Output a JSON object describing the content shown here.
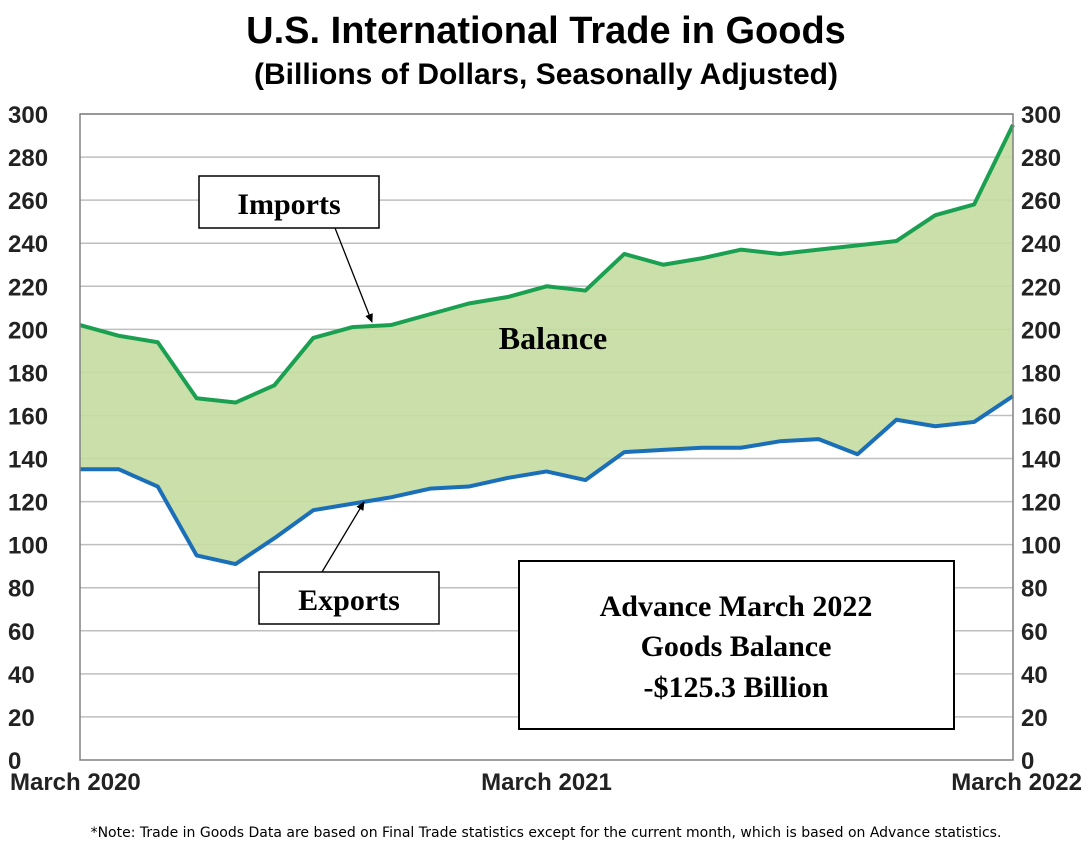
{
  "title": "U.S. International Trade in Goods",
  "subtitle": "(Billions of Dollars, Seasonally Adjusted)",
  "note": "*Note: Trade in Goods Data are based on Final Trade statistics except for the current month, which is based on Advance statistics.",
  "colors": {
    "imports": "#1aa050",
    "exports": "#1a6fb8",
    "balance_fill": "#c4dba0",
    "grid": "#bfbfbf"
  },
  "chart_data": {
    "type": "area",
    "ylim": [
      0,
      300
    ],
    "yticks": [
      0,
      20,
      40,
      60,
      80,
      100,
      120,
      140,
      160,
      180,
      200,
      220,
      240,
      260,
      280,
      300
    ],
    "x_tick_labels": [
      {
        "index": 0,
        "label": "March 2020"
      },
      {
        "index": 12,
        "label": "March 2021"
      },
      {
        "index": 24,
        "label": "March 2022"
      }
    ],
    "x": [
      "2020-03",
      "2020-04",
      "2020-05",
      "2020-06",
      "2020-07",
      "2020-08",
      "2020-09",
      "2020-10",
      "2020-11",
      "2020-12",
      "2021-01",
      "2021-02",
      "2021-03",
      "2021-04",
      "2021-05",
      "2021-06",
      "2021-07",
      "2021-08",
      "2021-09",
      "2021-10",
      "2021-11",
      "2021-12",
      "2022-01",
      "2022-02",
      "2022-03"
    ],
    "series": [
      {
        "name": "Imports",
        "values": [
          202,
          197,
          194,
          168,
          166,
          174,
          196,
          201,
          202,
          207,
          212,
          215,
          220,
          218,
          235,
          230,
          233,
          237,
          235,
          237,
          239,
          241,
          253,
          258,
          295
        ]
      },
      {
        "name": "Exports",
        "values": [
          135,
          135,
          127,
          95,
          91,
          103,
          116,
          119,
          122,
          126,
          127,
          131,
          134,
          130,
          143,
          144,
          145,
          145,
          148,
          149,
          142,
          158,
          155,
          157,
          169
        ]
      }
    ],
    "annotations": {
      "imports_label": "Imports",
      "exports_label": "Exports",
      "balance_label": "Balance",
      "box_line1": "Advance March 2022",
      "box_line2": "Goods Balance",
      "box_line3": "-$125.3 Billion"
    }
  }
}
